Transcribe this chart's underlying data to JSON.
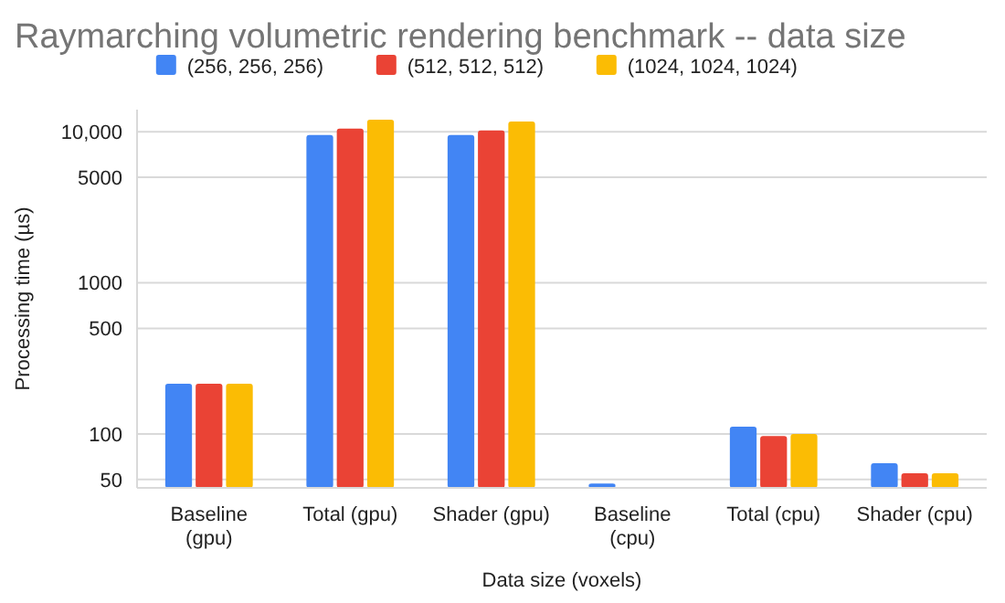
{
  "chart_data": {
    "type": "bar",
    "title": "Raymarching volumetric rendering benchmark -- data size",
    "xlabel": "Data size (voxels)",
    "ylabel": "Processing time (µs)",
    "categories": [
      "Baseline (gpu)",
      "Total (gpu)",
      "Shader (gpu)",
      "Baseline (cpu)",
      "Total (cpu)",
      "Shader (cpu)"
    ],
    "series": [
      {
        "name": "(256, 256, 256)",
        "color": "#4285f4",
        "values": [
          215,
          9500,
          9500,
          47,
          112,
          64
        ]
      },
      {
        "name": "(512, 512, 512)",
        "color": "#ea4335",
        "values": [
          215,
          10500,
          10200,
          null,
          97,
          55
        ]
      },
      {
        "name": "(1024, 1024, 1024)",
        "color": "#fbbc04",
        "values": [
          215,
          12000,
          11700,
          null,
          100,
          55
        ]
      }
    ],
    "log": true,
    "ylim": [
      44,
      14000
    ],
    "yticks": [
      50,
      100,
      500,
      1000,
      5000,
      {
        "value": 10000,
        "label": "10,000"
      }
    ],
    "grid": "y",
    "legend": "top"
  }
}
